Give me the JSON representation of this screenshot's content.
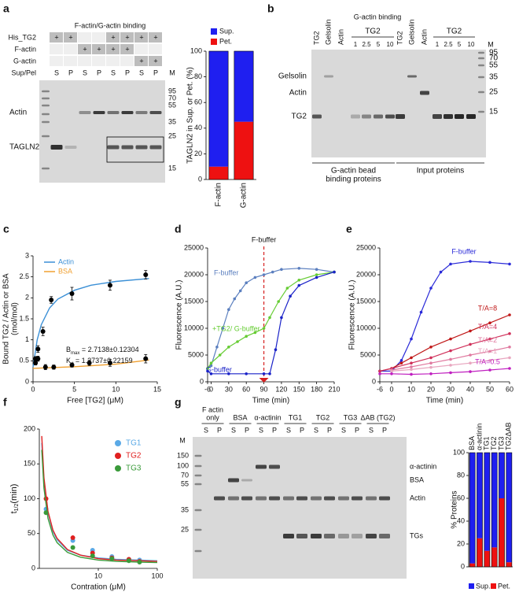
{
  "panel_labels": [
    "a",
    "b",
    "c",
    "d",
    "e",
    "f",
    "g"
  ],
  "gels": {
    "a": {
      "title": "F-actin/G-actin binding",
      "row_labels": [
        "His_TG2",
        "F-actin",
        "G-actin",
        "Sup/Pel"
      ],
      "rows": [
        [
          "+",
          "+",
          null,
          null,
          "+",
          "+",
          "+",
          "+"
        ],
        [
          null,
          null,
          "+",
          "+",
          "+",
          "+",
          null,
          null
        ],
        [
          null,
          null,
          null,
          null,
          null,
          null,
          "+",
          "+"
        ],
        [
          "S",
          "P",
          "S",
          "P",
          "S",
          "P",
          "S",
          "P"
        ]
      ],
      "marker_label": "M",
      "markers": [
        "95",
        "70",
        "55",
        "35",
        "25",
        "15"
      ],
      "band_labels": [
        "Actin",
        "TAGLN2"
      ]
    },
    "b": {
      "title": "G-actin binding",
      "lanes": [
        "TG2",
        "Gelsolin",
        "Actin",
        "1",
        "2.5",
        "5",
        "10",
        "TG2",
        "Gelsolin",
        "Actin",
        "1",
        "2.5",
        "5",
        "10"
      ],
      "group_labels": [
        "TG2",
        "TG2"
      ],
      "marker_label": "M",
      "markers": [
        "95",
        "70",
        "55",
        "35",
        "25",
        "15"
      ],
      "band_labels": [
        "Gelsolin",
        "Actin",
        "TG2"
      ],
      "sections": [
        [
          "G-actin bead",
          "binding proteins"
        ],
        [
          "Input proteins"
        ]
      ]
    },
    "g": {
      "groups": [
        [
          "F actin",
          "only"
        ],
        [
          "BSA"
        ],
        [
          "α-actinin"
        ],
        [
          "TG1"
        ],
        [
          "TG2"
        ],
        [
          "TG3"
        ],
        [
          "ΔAB (TG2)"
        ]
      ],
      "lanes": [
        "S",
        "P",
        "S",
        "P",
        "S",
        "P",
        "S",
        "P",
        "S",
        "P",
        "S",
        "P",
        "S",
        "P"
      ],
      "marker_label": "M",
      "markers": [
        "150",
        "100",
        "70",
        "55",
        "35",
        "25"
      ],
      "band_labels": [
        "α-actinin",
        "BSA",
        "Actin",
        "TGs"
      ]
    }
  },
  "chart_data": [
    {
      "type": "bar",
      "stacked": true,
      "categories": [
        "F-actin",
        "G-actin"
      ],
      "series": [
        {
          "name": "Sup.",
          "color": "#1f1ff0",
          "values": [
            90,
            55
          ]
        },
        {
          "name": "Pet.",
          "color": "#ee1111",
          "values": [
            10,
            45
          ]
        }
      ],
      "ylabel": "TAGLN2 in Sup. or Pet. (%)",
      "ylim": [
        0,
        100
      ],
      "yticks": [
        0,
        20,
        40,
        60,
        80,
        100
      ],
      "legend": "top"
    },
    {
      "type": "scatter",
      "xlabel": "Free [TG2] (μM)",
      "ylabel": [
        "Bound TG2 / Actin or BSA",
        "(mol/mol)"
      ],
      "xlim": [
        0,
        15
      ],
      "xticks": [
        0,
        5,
        10,
        15
      ],
      "ylim": [
        0,
        3
      ],
      "yticks": [
        0,
        0.5,
        1,
        1.5,
        2,
        2.5,
        3
      ],
      "marker_color": "#000000",
      "legend": "top-left",
      "series": [
        {
          "name": "Actin",
          "color": "#3a8fd6",
          "x": [
            0.3,
            0.6,
            1.2,
            2.2,
            4.7,
            9.3,
            13.6
          ],
          "values": [
            0.55,
            0.78,
            1.2,
            1.95,
            2.1,
            2.3,
            2.55
          ],
          "errors": [
            0.05,
            0.08,
            0.1,
            0.08,
            0.15,
            0.12,
            0.1
          ],
          "fit_x": [
            0,
            0.5,
            1,
            2,
            3,
            5,
            7,
            10,
            14
          ],
          "fit": [
            0.35,
            1.0,
            1.36,
            1.76,
            1.97,
            2.18,
            2.3,
            2.39,
            2.46
          ]
        },
        {
          "name": "BSA",
          "color": "#f0a030",
          "x": [
            0.3,
            0.6,
            1.5,
            2.5,
            4.7,
            6.8,
            9.3,
            13.6
          ],
          "values": [
            0.45,
            0.55,
            0.35,
            0.35,
            0.4,
            0.45,
            0.45,
            0.55
          ],
          "errors": [
            0.05,
            0.06,
            0.06,
            0.05,
            0.05,
            0.06,
            0.08,
            0.1
          ],
          "fit_x": [
            0,
            5,
            10,
            14
          ],
          "fit": [
            0.32,
            0.36,
            0.42,
            0.52
          ]
        }
      ],
      "annotations": [
        {
          "base": "B",
          "sub": "max",
          "text": " = 2.7138±0.12304"
        },
        {
          "base": "K",
          "sub": "d",
          "text": " = 1.2737±0.22159"
        }
      ]
    },
    {
      "type": "line",
      "xlabel": "Time (min)",
      "ylabel": "Fluorescence (A.U.)",
      "xlim": [
        -6,
        210
      ],
      "xticks": [
        -6,
        0,
        30,
        60,
        90,
        120,
        150,
        180,
        210
      ],
      "ylim": [
        0,
        25000
      ],
      "yticks": [
        0,
        5000,
        10000,
        15000,
        20000,
        25000
      ],
      "legend": "inline",
      "vline": {
        "x": 90,
        "label": "F-buffer",
        "color": "#d62020"
      },
      "series": [
        {
          "name": "F-buffer",
          "color": "#5b7fbf",
          "x": [
            -6,
            0,
            10,
            20,
            30,
            40,
            50,
            60,
            75,
            90,
            105,
            120,
            150,
            180,
            210
          ],
          "values": [
            2500,
            3000,
            6500,
            10000,
            13500,
            15500,
            17000,
            18500,
            19500,
            20000,
            20500,
            21000,
            21200,
            21000,
            20500
          ]
        },
        {
          "name": "+TG2/ G-buffer",
          "color": "#66cc33",
          "x": [
            -6,
            0,
            15,
            30,
            45,
            60,
            75,
            90,
            100,
            115,
            130,
            150,
            180,
            210
          ],
          "values": [
            2500,
            3500,
            5000,
            6500,
            7500,
            8500,
            9200,
            10000,
            12000,
            15000,
            17500,
            19000,
            20000,
            20500
          ]
        },
        {
          "name": "G-buffer",
          "color": "#1a22c8",
          "x": [
            -6,
            0,
            30,
            60,
            90,
            100,
            110,
            120,
            135,
            150,
            180,
            210
          ],
          "values": [
            2000,
            1500,
            1500,
            1500,
            1500,
            1500,
            6000,
            12000,
            16000,
            18000,
            19500,
            20500
          ]
        }
      ]
    },
    {
      "type": "line",
      "xlabel": "Time (min)",
      "ylabel": "Fluorescence (A.U.)",
      "xlim": [
        -6,
        60
      ],
      "xticks": [
        -6,
        0,
        10,
        20,
        30,
        40,
        50,
        60
      ],
      "ylim": [
        0,
        25000
      ],
      "yticks": [
        0,
        5000,
        10000,
        15000,
        20000,
        25000
      ],
      "legend": "inline",
      "series": [
        {
          "name": "F-buffer",
          "color": "#2a2ad8",
          "x": [
            -6,
            0,
            5,
            10,
            15,
            20,
            25,
            30,
            40,
            50,
            60
          ],
          "values": [
            2000,
            2000,
            4000,
            8000,
            13000,
            17500,
            20500,
            22000,
            22500,
            22300,
            22000
          ]
        },
        {
          "name": "T/A=8",
          "color": "#c01818",
          "x": [
            -6,
            0,
            5,
            10,
            20,
            30,
            40,
            50,
            60
          ],
          "values": [
            2000,
            2500,
            3500,
            4500,
            6500,
            8000,
            9500,
            11000,
            12500
          ]
        },
        {
          "name": "T/A=4",
          "color": "#d0305a",
          "x": [
            -6,
            0,
            10,
            20,
            30,
            40,
            50,
            60
          ],
          "values": [
            2000,
            2500,
            3500,
            4500,
            5800,
            7000,
            8000,
            9000
          ]
        },
        {
          "name": "T/A=2",
          "color": "#e07aa0",
          "x": [
            0,
            10,
            20,
            30,
            40,
            50,
            60
          ],
          "values": [
            2200,
            2800,
            3500,
            4200,
            5000,
            5700,
            6500
          ]
        },
        {
          "name": "T/A=1",
          "color": "#e8a6bf",
          "x": [
            0,
            10,
            20,
            30,
            40,
            50,
            60
          ],
          "values": [
            2000,
            2300,
            2700,
            3100,
            3500,
            4000,
            4500
          ]
        },
        {
          "name": "T/A=0.5",
          "color": "#c020c0",
          "x": [
            -6,
            0,
            10,
            20,
            30,
            40,
            50,
            60
          ],
          "values": [
            1500,
            1500,
            1400,
            1500,
            1700,
            1900,
            2200,
            2500
          ]
        }
      ]
    },
    {
      "type": "scatter",
      "xscale": "log",
      "xlabel": "Contration (μM)",
      "ylabel": {
        "base": "t",
        "sub": "1/2",
        "text": "(min)"
      },
      "xlim": [
        1,
        100
      ],
      "xticks": [
        10,
        100
      ],
      "ylim": [
        0,
        200
      ],
      "yticks": [
        0,
        50,
        100,
        150,
        200
      ],
      "legend": "top-right",
      "series": [
        {
          "name": "TG1",
          "color": "#5aa9e6",
          "x": [
            1.3,
            3.7,
            8,
            17,
            33,
            50
          ],
          "values": [
            85,
            40,
            26,
            17,
            13,
            12
          ],
          "fit_x": [
            1.1,
            1.2,
            1.4,
            1.7,
            2,
            3,
            5,
            10,
            20,
            50,
            100
          ],
          "fit": [
            180,
            125,
            80,
            53,
            41,
            26,
            19,
            15,
            13,
            12,
            11
          ]
        },
        {
          "name": "TG2",
          "color": "#e02020",
          "x": [
            1.3,
            3.7,
            8,
            17,
            33,
            50
          ],
          "values": [
            100,
            44,
            22,
            15,
            13,
            10
          ],
          "fit_x": [
            1.1,
            1.2,
            1.4,
            1.7,
            2,
            3,
            5,
            10,
            20,
            50,
            100
          ],
          "fit": [
            190,
            130,
            82,
            55,
            43,
            27,
            19,
            14,
            12,
            11,
            10
          ]
        },
        {
          "name": "TG3",
          "color": "#3a9a3a",
          "x": [
            1.3,
            3.7,
            8,
            17,
            33,
            50
          ],
          "values": [
            80,
            30,
            18,
            14,
            11,
            9
          ],
          "fit_x": [
            1.1,
            1.2,
            1.4,
            1.7,
            2,
            3,
            5,
            10,
            20,
            50,
            100
          ],
          "fit": [
            170,
            115,
            72,
            48,
            37,
            23,
            16,
            12,
            10,
            9,
            8.5
          ]
        }
      ]
    },
    {
      "type": "bar",
      "stacked": true,
      "categories": [
        "BSA",
        "α-actinin",
        "TG1",
        "TG2",
        "TG3",
        "TG2ΔAB"
      ],
      "series": [
        {
          "name": "Sup.",
          "color": "#1f1ff0",
          "values": [
            97,
            75,
            86,
            83,
            40,
            96
          ]
        },
        {
          "name": "Pet.",
          "color": "#ee1111",
          "values": [
            3,
            25,
            14,
            17,
            60,
            4
          ]
        }
      ],
      "ylabel": "% Proteins",
      "ylim": [
        0,
        100
      ],
      "yticks": [
        0,
        20,
        40,
        60,
        80,
        100
      ],
      "legend": "bottom"
    }
  ]
}
